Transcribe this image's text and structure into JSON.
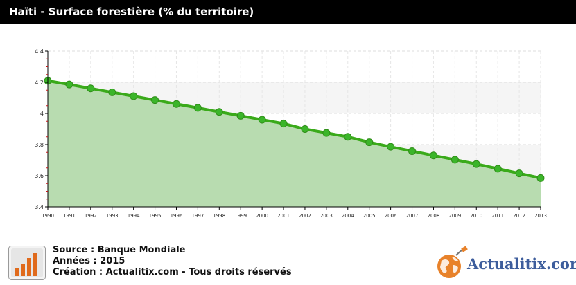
{
  "header": {
    "title": "Haïti - Surface forestière (% du territoire)"
  },
  "chart_data": {
    "type": "area",
    "title": "Haïti - Surface forestière (% du territoire)",
    "x": [
      "1990",
      "1991",
      "1992",
      "1993",
      "1994",
      "1995",
      "1996",
      "1997",
      "1998",
      "1999",
      "2000",
      "2001",
      "2002",
      "2003",
      "2004",
      "2005",
      "2006",
      "2007",
      "2008",
      "2009",
      "2010",
      "2011",
      "2012",
      "2013"
    ],
    "series": [
      {
        "values": [
          4.21,
          4.186,
          4.161,
          4.136,
          4.111,
          4.086,
          4.061,
          4.036,
          4.01,
          3.985,
          3.96,
          3.935,
          3.9,
          3.875,
          3.85,
          3.815,
          3.786,
          3.758,
          3.73,
          3.703,
          3.675,
          3.645,
          3.615,
          3.585
        ]
      }
    ],
    "yticks": [
      "3.4",
      "3.6",
      "3.8",
      "4",
      "4.2",
      "4.4"
    ],
    "ylim": [
      3.4,
      4.4
    ],
    "grid": true,
    "colors": {
      "line": "#3aaa1a",
      "marker": "#3bb52a",
      "fill": "#b8dcb0",
      "band": "#f5f5f5"
    }
  },
  "footer": {
    "source": "Source : Banque Mondiale",
    "annees": "Années : 2015",
    "creation": "Création : Actualitix.com - Tous droits réservés",
    "source_icon": "bar-chart-icon",
    "logo_text": "Actualitix",
    "logo_domain": ".com",
    "logo_icon": "globe-plug-icon"
  }
}
